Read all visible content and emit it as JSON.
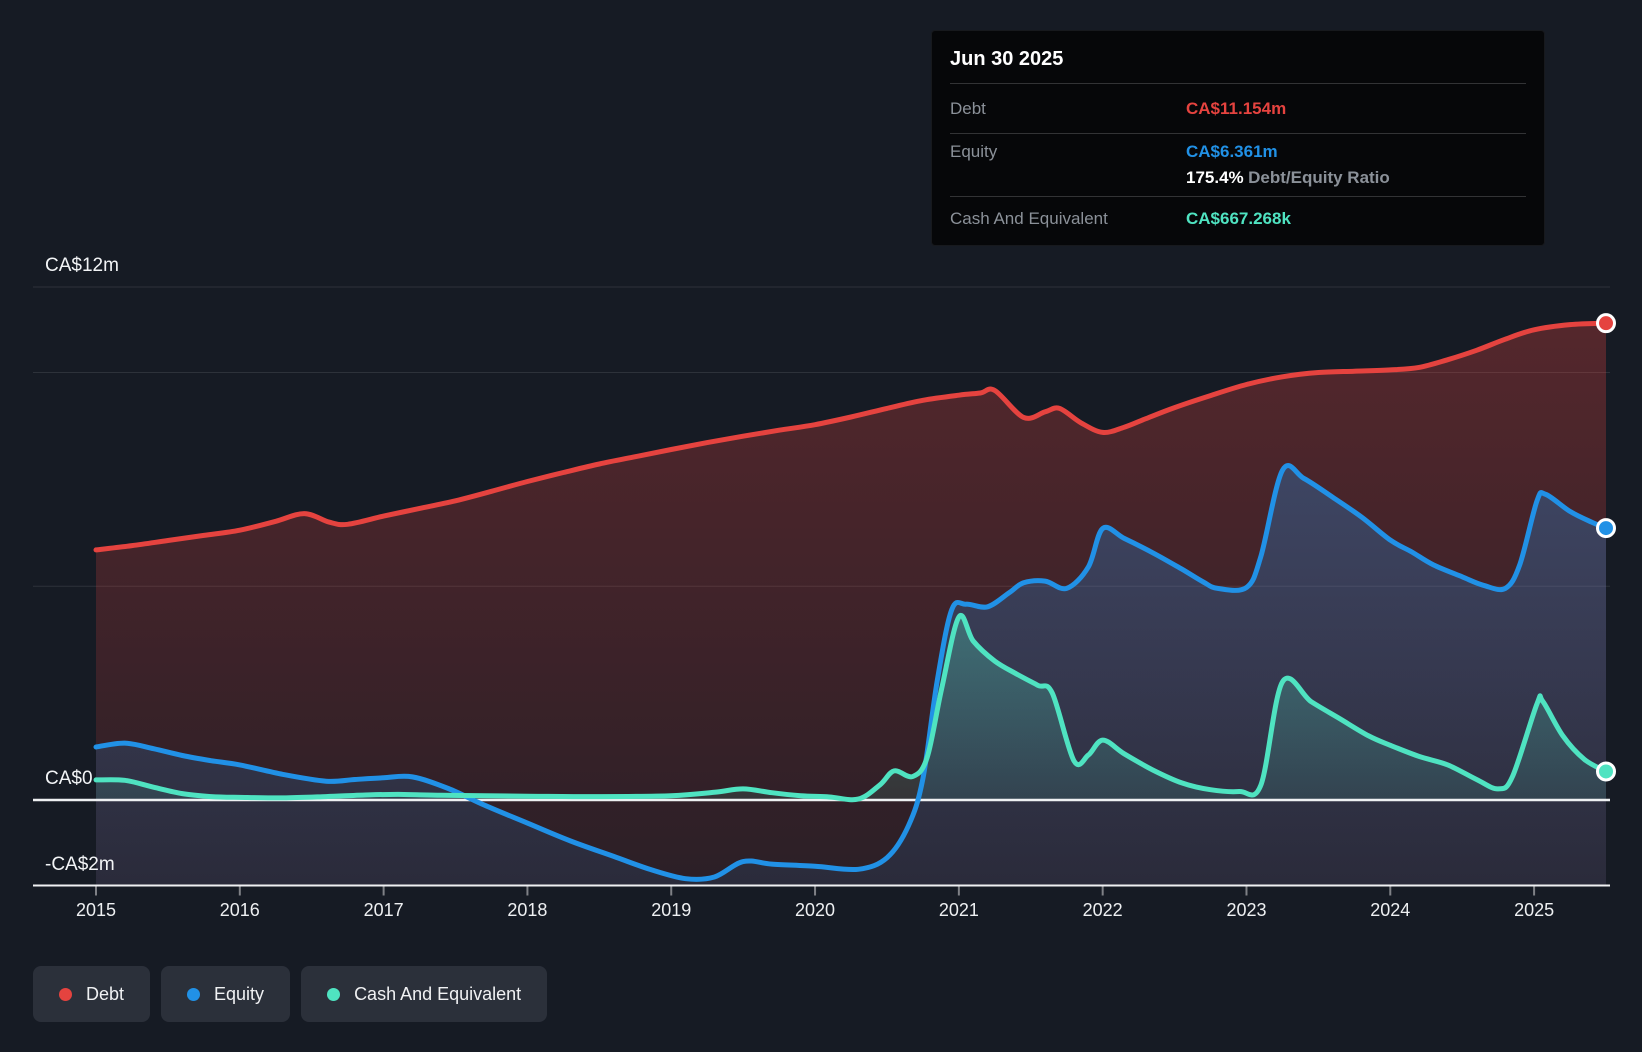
{
  "tooltip": {
    "date": "Jun 30 2025",
    "debt_label": "Debt",
    "debt_value": "CA$11.154m",
    "equity_label": "Equity",
    "equity_value": "CA$6.361m",
    "ratio_value": "175.4%",
    "ratio_label": "Debt/Equity Ratio",
    "cash_label": "Cash And Equivalent",
    "cash_value": "CA$667.268k"
  },
  "legend": {
    "items": [
      {
        "label": "Debt",
        "color": "#e5433f"
      },
      {
        "label": "Equity",
        "color": "#2191e6"
      },
      {
        "label": "Cash And Equivalent",
        "color": "#4fe3c1"
      }
    ]
  },
  "chart_data": {
    "type": "area",
    "xlim": [
      2015,
      2025.5
    ],
    "ylim": [
      -2,
      12
    ],
    "x_ticks": [
      2015,
      2016,
      2017,
      2018,
      2019,
      2020,
      2021,
      2022,
      2023,
      2024,
      2025
    ],
    "y_labels": [
      {
        "value": 12,
        "text": "CA$12m"
      },
      {
        "value": 0,
        "text": "CA$0"
      },
      {
        "value": -2,
        "text": "-CA$2m"
      }
    ],
    "gridline_values": [
      12,
      10,
      5
    ],
    "background_color": "#161b24",
    "zero_line_color": "#eef0f2",
    "series": [
      {
        "name": "Debt",
        "color": "#e5433f",
        "fill_to": "bottom",
        "end_label": "CA$11.154m",
        "points": [
          [
            2015,
            5.85
          ],
          [
            2015.25,
            5.95
          ],
          [
            2015.5,
            6.07
          ],
          [
            2015.75,
            6.19
          ],
          [
            2016,
            6.31
          ],
          [
            2016.25,
            6.52
          ],
          [
            2016.45,
            6.7
          ],
          [
            2016.62,
            6.5
          ],
          [
            2016.75,
            6.45
          ],
          [
            2017,
            6.64
          ],
          [
            2017.25,
            6.82
          ],
          [
            2017.5,
            7.0
          ],
          [
            2017.75,
            7.22
          ],
          [
            2018,
            7.45
          ],
          [
            2018.25,
            7.66
          ],
          [
            2018.5,
            7.86
          ],
          [
            2018.75,
            8.03
          ],
          [
            2019,
            8.2
          ],
          [
            2019.25,
            8.36
          ],
          [
            2019.5,
            8.51
          ],
          [
            2019.75,
            8.65
          ],
          [
            2020,
            8.78
          ],
          [
            2020.25,
            8.96
          ],
          [
            2020.5,
            9.16
          ],
          [
            2020.75,
            9.35
          ],
          [
            2021,
            9.47
          ],
          [
            2021.15,
            9.52
          ],
          [
            2021.25,
            9.58
          ],
          [
            2021.45,
            8.95
          ],
          [
            2021.6,
            9.08
          ],
          [
            2021.7,
            9.16
          ],
          [
            2021.85,
            8.82
          ],
          [
            2022,
            8.6
          ],
          [
            2022.15,
            8.72
          ],
          [
            2022.3,
            8.92
          ],
          [
            2022.5,
            9.18
          ],
          [
            2022.75,
            9.46
          ],
          [
            2023,
            9.72
          ],
          [
            2023.25,
            9.9
          ],
          [
            2023.5,
            10.0
          ],
          [
            2023.75,
            10.03
          ],
          [
            2024,
            10.06
          ],
          [
            2024.2,
            10.12
          ],
          [
            2024.4,
            10.3
          ],
          [
            2024.6,
            10.52
          ],
          [
            2024.8,
            10.78
          ],
          [
            2025,
            11.0
          ],
          [
            2025.25,
            11.12
          ],
          [
            2025.5,
            11.154
          ]
        ]
      },
      {
        "name": "Equity",
        "color": "#2191e6",
        "fill_to": "bottom",
        "end_label": "CA$6.361m",
        "points": [
          [
            2015,
            1.24
          ],
          [
            2015.2,
            1.33
          ],
          [
            2015.4,
            1.2
          ],
          [
            2015.6,
            1.04
          ],
          [
            2015.8,
            0.92
          ],
          [
            2016,
            0.82
          ],
          [
            2016.3,
            0.6
          ],
          [
            2016.6,
            0.44
          ],
          [
            2016.8,
            0.48
          ],
          [
            2017,
            0.52
          ],
          [
            2017.2,
            0.54
          ],
          [
            2017.45,
            0.27
          ],
          [
            2017.7,
            -0.12
          ],
          [
            2018,
            -0.54
          ],
          [
            2018.3,
            -0.96
          ],
          [
            2018.6,
            -1.32
          ],
          [
            2018.85,
            -1.62
          ],
          [
            2019.1,
            -1.84
          ],
          [
            2019.3,
            -1.8
          ],
          [
            2019.5,
            -1.44
          ],
          [
            2019.7,
            -1.5
          ],
          [
            2020,
            -1.55
          ],
          [
            2020.3,
            -1.62
          ],
          [
            2020.5,
            -1.35
          ],
          [
            2020.65,
            -0.6
          ],
          [
            2020.75,
            0.5
          ],
          [
            2020.85,
            2.8
          ],
          [
            2020.95,
            4.45
          ],
          [
            2021.05,
            4.58
          ],
          [
            2021.2,
            4.52
          ],
          [
            2021.35,
            4.85
          ],
          [
            2021.45,
            5.08
          ],
          [
            2021.6,
            5.12
          ],
          [
            2021.75,
            4.95
          ],
          [
            2021.9,
            5.45
          ],
          [
            2022,
            6.35
          ],
          [
            2022.15,
            6.12
          ],
          [
            2022.35,
            5.78
          ],
          [
            2022.55,
            5.4
          ],
          [
            2022.7,
            5.1
          ],
          [
            2022.8,
            4.95
          ],
          [
            2023,
            4.97
          ],
          [
            2023.1,
            5.7
          ],
          [
            2023.25,
            7.71
          ],
          [
            2023.4,
            7.52
          ],
          [
            2023.6,
            7.08
          ],
          [
            2023.8,
            6.62
          ],
          [
            2024,
            6.08
          ],
          [
            2024.15,
            5.8
          ],
          [
            2024.3,
            5.5
          ],
          [
            2024.5,
            5.22
          ],
          [
            2024.65,
            5.02
          ],
          [
            2024.8,
            4.95
          ],
          [
            2024.9,
            5.5
          ],
          [
            2025.02,
            7.0
          ],
          [
            2025.08,
            7.15
          ],
          [
            2025.25,
            6.75
          ],
          [
            2025.4,
            6.5
          ],
          [
            2025.5,
            6.361
          ]
        ]
      },
      {
        "name": "Cash And Equivalent",
        "color": "#4fe3c1",
        "fill_to": "zero",
        "end_label": "CA$667.268k",
        "points": [
          [
            2015,
            0.47
          ],
          [
            2015.2,
            0.46
          ],
          [
            2015.4,
            0.3
          ],
          [
            2015.6,
            0.15
          ],
          [
            2015.8,
            0.08
          ],
          [
            2016,
            0.06
          ],
          [
            2016.3,
            0.05
          ],
          [
            2016.6,
            0.08
          ],
          [
            2016.9,
            0.12
          ],
          [
            2017.1,
            0.13
          ],
          [
            2017.4,
            0.11
          ],
          [
            2017.7,
            0.1
          ],
          [
            2018,
            0.09
          ],
          [
            2018.5,
            0.08
          ],
          [
            2019,
            0.1
          ],
          [
            2019.3,
            0.18
          ],
          [
            2019.5,
            0.26
          ],
          [
            2019.7,
            0.17
          ],
          [
            2019.9,
            0.1
          ],
          [
            2020.1,
            0.07
          ],
          [
            2020.3,
            0.02
          ],
          [
            2020.45,
            0.35
          ],
          [
            2020.55,
            0.68
          ],
          [
            2020.68,
            0.55
          ],
          [
            2020.78,
            1.0
          ],
          [
            2020.88,
            2.6
          ],
          [
            2021,
            4.28
          ],
          [
            2021.1,
            3.72
          ],
          [
            2021.25,
            3.25
          ],
          [
            2021.4,
            2.95
          ],
          [
            2021.55,
            2.68
          ],
          [
            2021.65,
            2.5
          ],
          [
            2021.8,
            0.92
          ],
          [
            2021.9,
            1.05
          ],
          [
            2022,
            1.4
          ],
          [
            2022.15,
            1.08
          ],
          [
            2022.35,
            0.7
          ],
          [
            2022.55,
            0.4
          ],
          [
            2022.75,
            0.24
          ],
          [
            2022.95,
            0.2
          ],
          [
            2023.1,
            0.35
          ],
          [
            2023.25,
            2.76
          ],
          [
            2023.45,
            2.3
          ],
          [
            2023.65,
            1.9
          ],
          [
            2023.85,
            1.5
          ],
          [
            2024,
            1.28
          ],
          [
            2024.2,
            1.02
          ],
          [
            2024.4,
            0.82
          ],
          [
            2024.6,
            0.48
          ],
          [
            2024.75,
            0.26
          ],
          [
            2024.85,
            0.55
          ],
          [
            2025.02,
            2.25
          ],
          [
            2025.06,
            2.31
          ],
          [
            2025.2,
            1.5
          ],
          [
            2025.35,
            0.95
          ],
          [
            2025.5,
            0.667
          ]
        ]
      }
    ]
  }
}
